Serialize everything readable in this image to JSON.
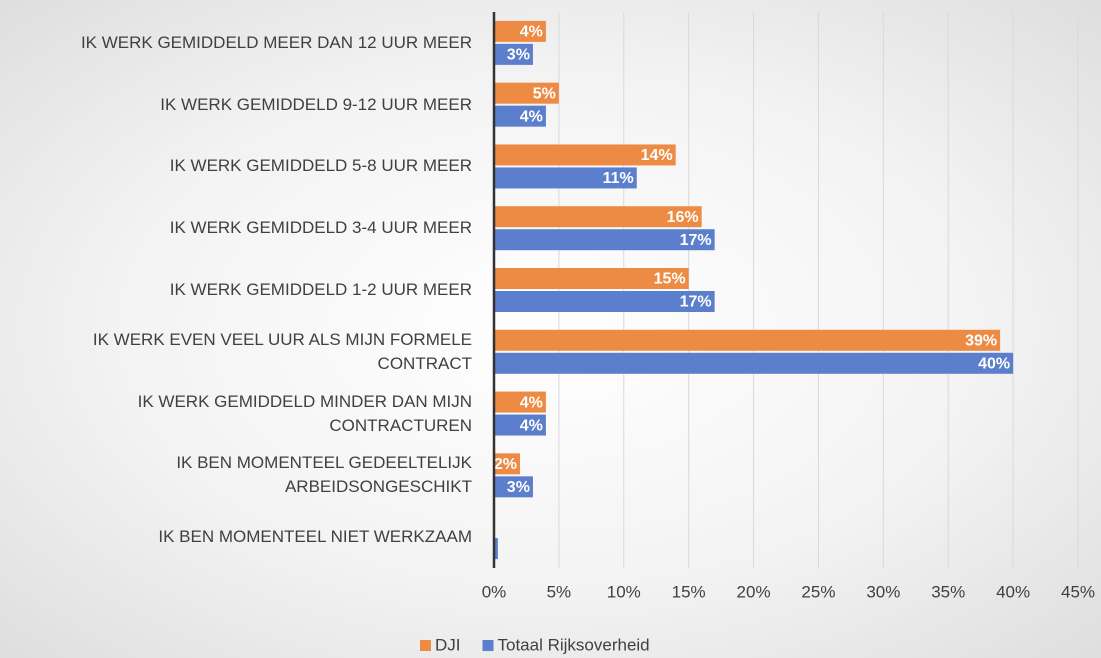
{
  "chart_data": {
    "type": "bar",
    "orientation": "horizontal",
    "categories": [
      "IK WERK GEMIDDELD MEER DAN 12 UUR MEER",
      "IK WERK GEMIDDELD 9-12 UUR MEER",
      "IK WERK GEMIDDELD 5-8 UUR MEER",
      "IK WERK GEMIDDELD 3-4 UUR MEER",
      "IK WERK GEMIDDELD 1-2 UUR MEER",
      "IK WERK EVEN VEEL UUR ALS MIJN FORMELE\nCONTRACT",
      "IK WERK GEMIDDELD MINDER DAN MIJN\nCONTRACTUREN",
      "IK BEN MOMENTEEL GEDEELTELIJK\nARBEIDSONGESCHIKT",
      "IK BEN MOMENTEEL NIET WERKZAAM"
    ],
    "series": [
      {
        "name": "DJI",
        "color": "#ed8b45",
        "values": [
          4,
          5,
          14,
          16,
          15,
          39,
          4,
          2,
          0
        ],
        "value_labels": [
          "4%",
          "5%",
          "14%",
          "16%",
          "15%",
          "39%",
          "4%",
          "2%",
          null
        ]
      },
      {
        "name": "Totaal Rijksoverheid",
        "color": "#5b7fcc",
        "values": [
          3,
          4,
          11,
          17,
          17,
          40,
          4,
          3,
          0.3
        ],
        "value_labels": [
          "3%",
          "4%",
          "11%",
          "17%",
          "17%",
          "40%",
          "4%",
          "3%",
          null
        ]
      }
    ],
    "xlim": [
      0,
      45
    ],
    "xticks": [
      {
        "value": 0,
        "label": "0%"
      },
      {
        "value": 5,
        "label": "5%"
      },
      {
        "value": 10,
        "label": "10%"
      },
      {
        "value": 15,
        "label": "15%"
      },
      {
        "value": 20,
        "label": "20%"
      },
      {
        "value": 25,
        "label": "25%"
      },
      {
        "value": 30,
        "label": "30%"
      },
      {
        "value": 35,
        "label": "35%"
      },
      {
        "value": 40,
        "label": "40%"
      },
      {
        "value": 45,
        "label": "45%"
      }
    ],
    "grid": true,
    "legend": "bottom"
  }
}
